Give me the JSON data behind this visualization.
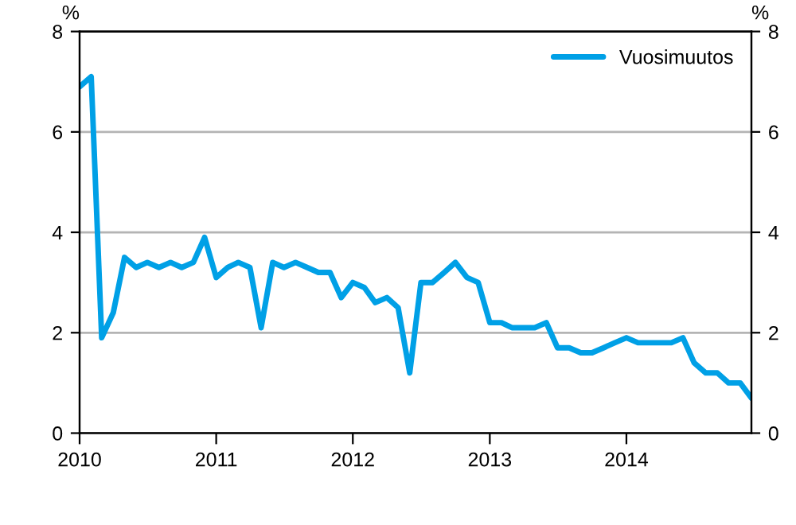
{
  "chart_data": {
    "type": "line",
    "ylabel": "%",
    "y2label": "%",
    "x": [
      "2010-01",
      "2010-02",
      "2010-03",
      "2010-04",
      "2010-05",
      "2010-06",
      "2010-07",
      "2010-08",
      "2010-09",
      "2010-10",
      "2010-11",
      "2010-12",
      "2011-01",
      "2011-02",
      "2011-03",
      "2011-04",
      "2011-05",
      "2011-06",
      "2011-07",
      "2011-08",
      "2011-09",
      "2011-10",
      "2011-11",
      "2011-12",
      "2012-01",
      "2012-02",
      "2012-03",
      "2012-04",
      "2012-05",
      "2012-06",
      "2012-07",
      "2012-08",
      "2012-09",
      "2012-10",
      "2012-11",
      "2012-12",
      "2013-01",
      "2013-02",
      "2013-03",
      "2013-04",
      "2013-05",
      "2013-06",
      "2013-07",
      "2013-08",
      "2013-09",
      "2013-10",
      "2013-11",
      "2013-12",
      "2014-01",
      "2014-02",
      "2014-03",
      "2014-04",
      "2014-05",
      "2014-06",
      "2014-07",
      "2014-08",
      "2014-09",
      "2014-10",
      "2014-11",
      "2014-12"
    ],
    "series": [
      {
        "name": "Vuosimuutos",
        "color": "#00a0e6",
        "values": [
          6.9,
          7.1,
          1.9,
          2.4,
          3.5,
          3.3,
          3.4,
          3.3,
          3.4,
          3.3,
          3.4,
          3.9,
          3.1,
          3.3,
          3.4,
          3.3,
          2.1,
          3.4,
          3.3,
          3.4,
          3.3,
          3.2,
          3.2,
          2.7,
          3.0,
          2.9,
          2.6,
          2.7,
          2.5,
          1.2,
          3.0,
          3.0,
          3.2,
          3.4,
          3.1,
          3.0,
          2.2,
          2.2,
          2.1,
          2.1,
          2.1,
          2.2,
          1.7,
          1.7,
          1.6,
          1.6,
          1.7,
          1.8,
          1.9,
          1.8,
          1.8,
          1.8,
          1.8,
          1.9,
          1.4,
          1.2,
          1.2,
          1.0,
          1.0,
          0.7
        ]
      }
    ],
    "xlim": [
      "2010-01",
      "2014-12"
    ],
    "xticks": [
      {
        "value": "2010-01",
        "label": "2010"
      },
      {
        "value": "2011-01",
        "label": "2011"
      },
      {
        "value": "2012-01",
        "label": "2012"
      },
      {
        "value": "2013-01",
        "label": "2013"
      },
      {
        "value": "2014-01",
        "label": "2014"
      }
    ],
    "ylim": [
      0,
      8
    ],
    "yticks": [
      0,
      2,
      4,
      6,
      8
    ],
    "y2lim": [
      0,
      8
    ],
    "y2ticks": [
      0,
      2,
      4,
      6,
      8
    ],
    "grid": "y",
    "legend": "top right",
    "marker": "none",
    "line_style": "solid"
  }
}
